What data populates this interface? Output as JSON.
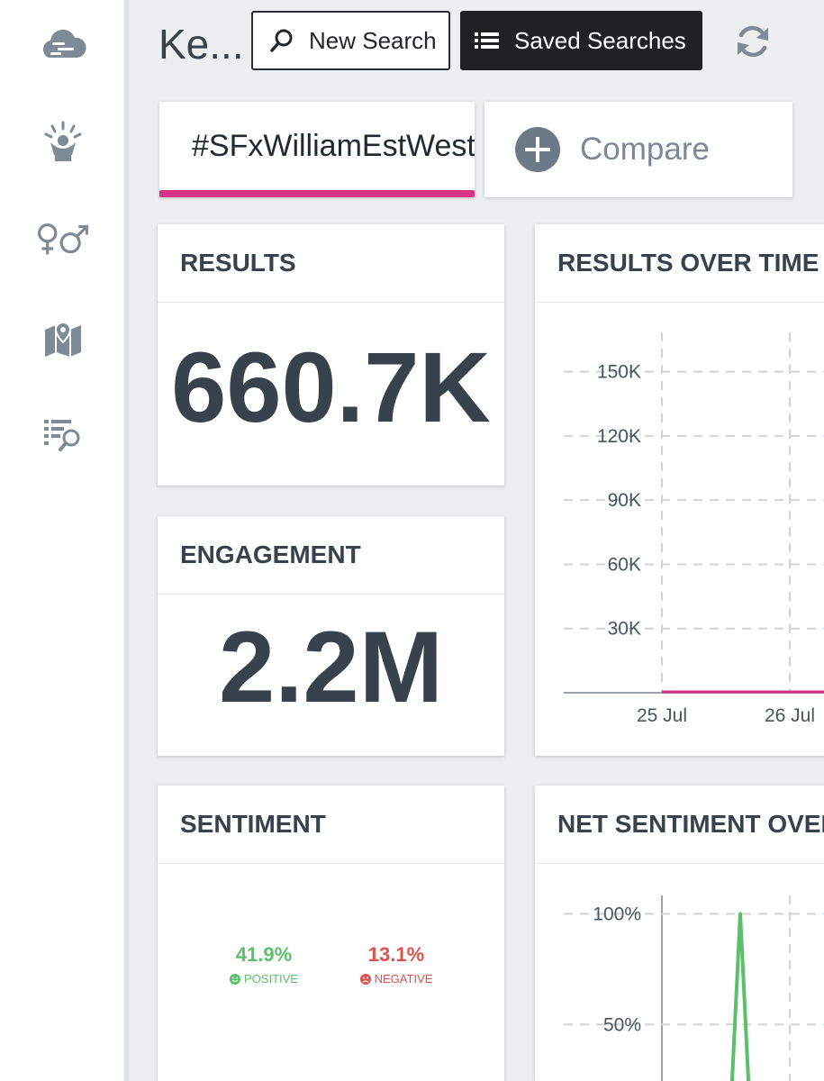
{
  "sidebar": {
    "icons": [
      "cloud-icon",
      "influencer-icon",
      "gender-icon",
      "map-icon",
      "search-list-icon"
    ]
  },
  "header": {
    "title": "Ke...",
    "new_search_label": "New Search",
    "saved_searches_label": "Saved Searches"
  },
  "tabs": {
    "query": "#SFxWilliamEstWest",
    "compare": "Compare"
  },
  "cards": {
    "results": {
      "title": "RESULTS",
      "value": "660.7K"
    },
    "engagement": {
      "title": "ENGAGEMENT",
      "value": "2.2M"
    },
    "sentiment": {
      "title": "SENTIMENT",
      "positive_value": "41.9%",
      "positive_label": "POSITIVE",
      "negative_value": "13.1%",
      "negative_label": "NEGATIVE"
    },
    "results_over_time": {
      "title": "RESULTS OVER TIME"
    },
    "net_sentiment": {
      "title": "NET SENTIMENT OVER TIME"
    }
  },
  "colors": {
    "accent": "#d63384",
    "positive": "#5cbf69",
    "negative": "#d9534f",
    "text": "#37424c"
  },
  "chart_data": [
    {
      "type": "line",
      "title": "RESULTS OVER TIME",
      "y_ticks": [
        "150K",
        "120K",
        "90K",
        "60K",
        "30K"
      ],
      "y_tick_values": [
        150000,
        120000,
        90000,
        60000,
        30000
      ],
      "x_ticks": [
        "25 Jul",
        "26 Jul"
      ],
      "ylim": [
        0,
        165000
      ],
      "grid": true,
      "series": [
        {
          "color": "#d63384",
          "x": [
            "25 Jul",
            "26 Jul"
          ],
          "values": [
            0,
            0
          ]
        }
      ]
    },
    {
      "type": "line",
      "title": "NET SENTIMENT OVER TIME",
      "y_ticks": [
        "100%",
        "50%"
      ],
      "y_tick_values": [
        100,
        50
      ],
      "ylim": [
        0,
        110
      ],
      "grid": true,
      "series": [
        {
          "color": "#5cbf69",
          "values": [
            0,
            100,
            0
          ]
        }
      ]
    }
  ]
}
